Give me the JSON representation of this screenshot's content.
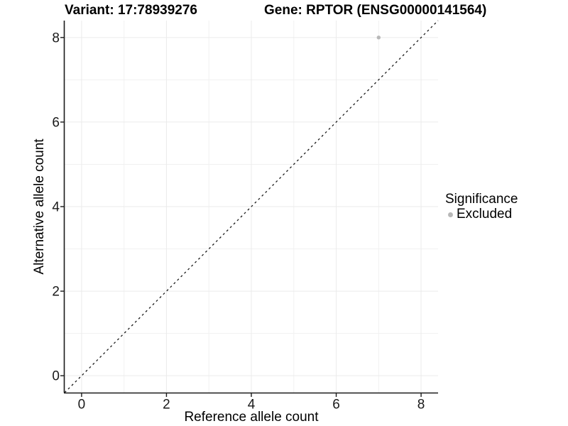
{
  "titles": {
    "variant": "Variant: 17:78939276",
    "gene": "Gene: RPTOR (ENSG00000141564)"
  },
  "legend": {
    "title": "Significance",
    "items": [
      {
        "label": "Excluded",
        "color": "#b8b8b8"
      }
    ]
  },
  "colors": {
    "background": "#ffffff",
    "axis": "#1a1a1a",
    "tick_text": "#1a1a1a",
    "grid_major": "#ebebeb",
    "grid_minor": "#f1f1f1",
    "reference_line": "#1a1a1a",
    "point": "#b8b8b8"
  },
  "chart_data": {
    "type": "scatter",
    "title_left": "Variant: 17:78939276",
    "title_right": "Gene: RPTOR (ENSG00000141564)",
    "xlabel": "Reference allele count",
    "ylabel": "Alternative allele count",
    "xlim": [
      -0.4,
      8.4
    ],
    "ylim": [
      -0.4,
      8.4
    ],
    "x_ticks": [
      0,
      2,
      4,
      6,
      8
    ],
    "y_ticks": [
      0,
      2,
      4,
      6,
      8
    ],
    "x_minor_gridlines": [
      1,
      3,
      5,
      7
    ],
    "y_minor_gridlines": [
      1,
      3,
      5,
      7
    ],
    "grid": true,
    "legend_position": "right",
    "series": [
      {
        "name": "Excluded",
        "color": "#b8b8b8",
        "points": [
          {
            "x": 7,
            "y": 8
          }
        ]
      }
    ],
    "reference_line": {
      "description": "identity line y = x",
      "style": "dashed",
      "x1": -0.4,
      "y1": -0.4,
      "x2": 8.4,
      "y2": 8.4
    }
  }
}
